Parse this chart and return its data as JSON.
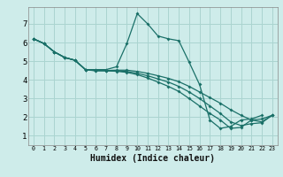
{
  "xlabel": "Humidex (Indice chaleur)",
  "background_color": "#ceecea",
  "grid_color": "#aad4d0",
  "line_color": "#1a7068",
  "xlim": [
    -0.5,
    23.5
  ],
  "ylim": [
    0.5,
    7.9
  ],
  "yticks": [
    1,
    2,
    3,
    4,
    5,
    6,
    7
  ],
  "xticks": [
    0,
    1,
    2,
    3,
    4,
    5,
    6,
    7,
    8,
    9,
    10,
    11,
    12,
    13,
    14,
    15,
    16,
    17,
    18,
    19,
    20,
    21,
    22,
    23
  ],
  "lines": [
    {
      "x": [
        0,
        1,
        2,
        3,
        4,
        5,
        6,
        7,
        8,
        9,
        10,
        11,
        12,
        13,
        14,
        15,
        16,
        17,
        18,
        19,
        20,
        21,
        22
      ],
      "y": [
        6.2,
        5.95,
        5.5,
        5.2,
        5.05,
        4.55,
        4.55,
        4.55,
        4.7,
        5.95,
        7.55,
        7.0,
        6.35,
        6.2,
        6.1,
        4.95,
        3.75,
        1.85,
        1.4,
        1.5,
        1.85,
        1.9,
        2.1
      ]
    },
    {
      "x": [
        0,
        1,
        2,
        3,
        4,
        5,
        6,
        7,
        8,
        9,
        10,
        11,
        12,
        13,
        14,
        15,
        16,
        17,
        18,
        19,
        20,
        21,
        22,
        23
      ],
      "y": [
        6.2,
        5.95,
        5.5,
        5.2,
        5.05,
        4.55,
        4.52,
        4.5,
        4.52,
        4.52,
        4.45,
        4.35,
        4.22,
        4.08,
        3.9,
        3.65,
        3.35,
        3.05,
        2.75,
        2.4,
        2.1,
        1.85,
        1.75,
        2.1
      ]
    },
    {
      "x": [
        0,
        1,
        2,
        3,
        4,
        5,
        6,
        7,
        8,
        9,
        10,
        11,
        12,
        13,
        14,
        15,
        16,
        17,
        18,
        19,
        20,
        21,
        22,
        23
      ],
      "y": [
        6.2,
        5.95,
        5.5,
        5.2,
        5.05,
        4.55,
        4.5,
        4.5,
        4.48,
        4.45,
        4.35,
        4.22,
        4.05,
        3.88,
        3.65,
        3.35,
        3.0,
        2.6,
        2.2,
        1.75,
        1.55,
        1.65,
        1.7,
        2.1
      ]
    },
    {
      "x": [
        0,
        1,
        2,
        3,
        4,
        5,
        6,
        7,
        8,
        9,
        10,
        11,
        12,
        13,
        14,
        15,
        16,
        17,
        18,
        19,
        20,
        21,
        22,
        23
      ],
      "y": [
        6.2,
        5.95,
        5.5,
        5.2,
        5.05,
        4.55,
        4.48,
        4.48,
        4.46,
        4.4,
        4.28,
        4.1,
        3.88,
        3.65,
        3.38,
        3.0,
        2.6,
        2.2,
        1.85,
        1.4,
        1.45,
        1.85,
        1.9,
        2.1
      ]
    }
  ]
}
